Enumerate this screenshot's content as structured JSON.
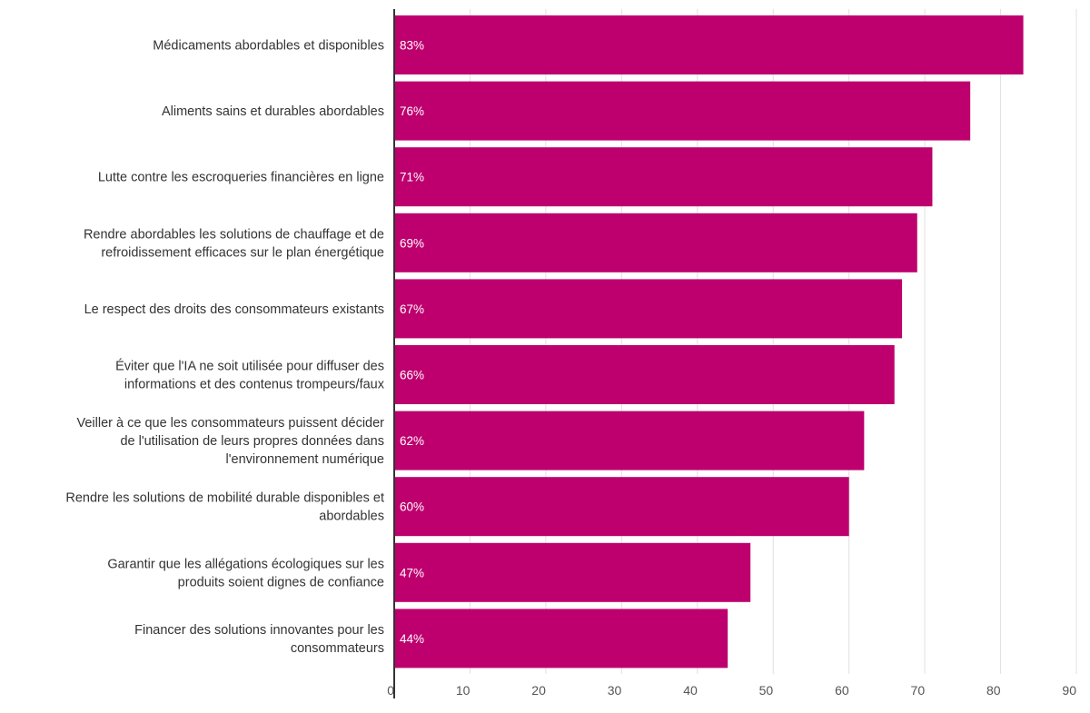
{
  "chart_data": {
    "type": "bar",
    "orientation": "horizontal",
    "categories": [
      "Médicaments abordables et disponibles",
      "Aliments sains et durables abordables",
      "Lutte contre les escroqueries financières en ligne",
      "Rendre abordables les solutions de chauffage et de refroidissement efficaces sur le plan énergétique",
      "Le respect des droits des consommateurs existants",
      "Éviter que l'IA ne soit utilisée pour diffuser des informations et des contenus trompeurs/faux",
      "Veiller à ce que les consommateurs puissent décider de l'utilisation de leurs propres données dans l'environnement numérique",
      "Rendre les solutions de mobilité durable disponibles et abordables",
      "Garantir que les allégations écologiques sur les produits soient dignes de confiance",
      "Financer des solutions innovantes pour les consommateurs"
    ],
    "category_lines": [
      [
        "Médicaments abordables et disponibles"
      ],
      [
        "Aliments sains et durables abordables"
      ],
      [
        "Lutte contre les escroqueries financières en ligne"
      ],
      [
        "Rendre abordables les solutions de chauffage et de",
        "refroidissement efficaces sur le plan énergétique"
      ],
      [
        "Le respect des droits des consommateurs existants"
      ],
      [
        "Éviter que l'IA ne soit utilisée pour diffuser des",
        "informations et des contenus trompeurs/faux"
      ],
      [
        "Veiller à ce que les consommateurs puissent décider",
        "de l'utilisation de leurs propres données dans",
        "l'environnement numérique"
      ],
      [
        "Rendre les solutions de mobilité durable disponibles et",
        "abordables"
      ],
      [
        "Garantir que les allégations écologiques sur les",
        "produits soient dignes de confiance"
      ],
      [
        "Financer des solutions innovantes pour les",
        "consommateurs"
      ]
    ],
    "values": [
      83,
      76,
      71,
      69,
      67,
      66,
      62,
      60,
      47,
      44
    ],
    "data_labels": [
      "83%",
      "76%",
      "71%",
      "69%",
      "67%",
      "66%",
      "62%",
      "60%",
      "47%",
      "44%"
    ],
    "x_ticks": [
      0,
      10,
      20,
      30,
      40,
      50,
      60,
      70,
      80,
      90
    ],
    "xlim": [
      0,
      90
    ],
    "grid": true,
    "title": "",
    "xlabel": "",
    "ylabel": "",
    "colors": {
      "bar": "#BD006E",
      "grid": "#E0E0E0",
      "axis": "#333333",
      "bar_label": "#FFFFFF",
      "category_text": "#333333",
      "tick_text": "#555555"
    }
  }
}
